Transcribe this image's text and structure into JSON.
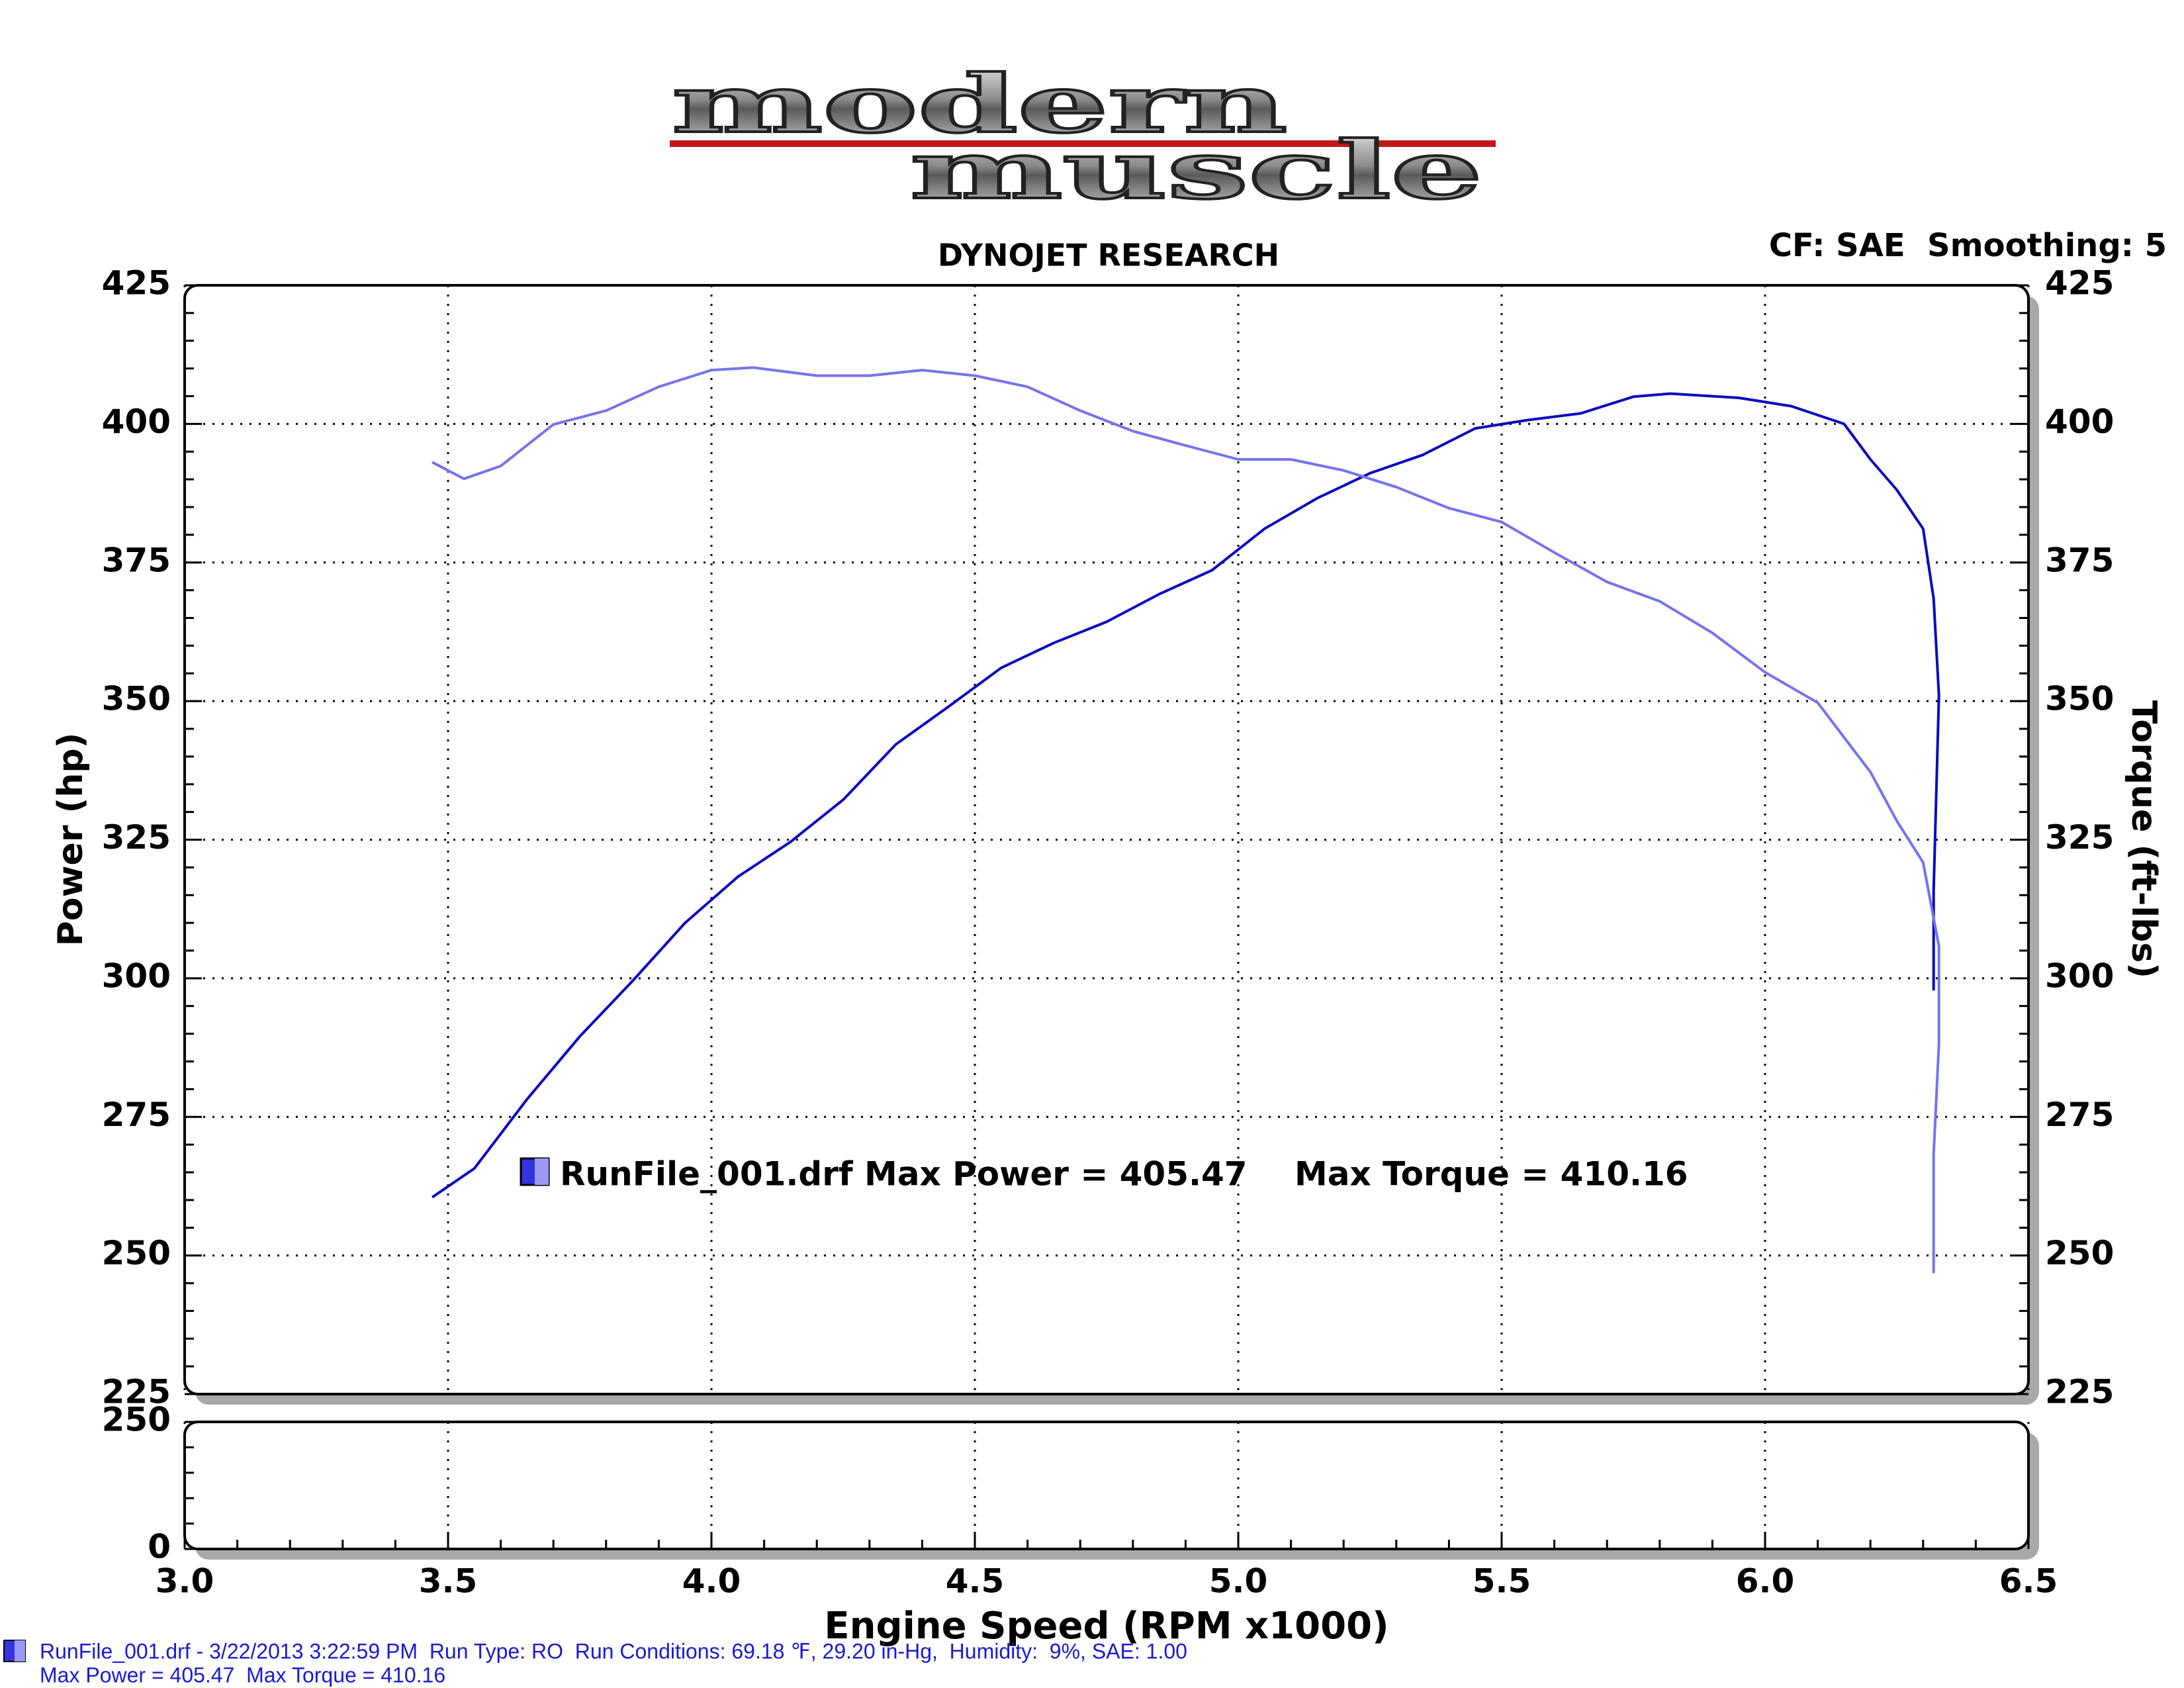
{
  "chart_data": {
    "type": "line",
    "logo_top": "modern",
    "logo_bottom": "muscle",
    "title": "DYNOJET RESEARCH",
    "subtitle": "CF: SAE  Smoothing: 5",
    "x_label": "Engine Speed (RPM x1000)",
    "y_label": "Power (hp)",
    "y2_label": "Torque (ft-lbs)",
    "xlim": [
      3.0,
      6.5
    ],
    "xticks": [
      {
        "value": 3,
        "label": "3.0"
      },
      3.5,
      {
        "value": 4,
        "label": "4.0"
      },
      4.5,
      {
        "value": 5,
        "label": "5.0"
      },
      5.5,
      {
        "value": 6,
        "label": "6.0"
      },
      6.5
    ],
    "ylim": [
      225,
      425
    ],
    "yticks": [
      225,
      250,
      275,
      300,
      325,
      350,
      375,
      400,
      425
    ],
    "y2lim": [
      225,
      425
    ],
    "y2ticks": [
      225,
      250,
      275,
      300,
      325,
      350,
      375,
      400,
      425
    ],
    "lower_ylim": [
      0,
      250
    ],
    "lower_yticks": [
      0,
      250
    ],
    "minor_ticks": 4,
    "grid": true,
    "series": [
      {
        "color": "#0a0ac0",
        "x": [
          3.47,
          3.55,
          3.65,
          3.75,
          3.85,
          3.95,
          4.05,
          4.15,
          4.25,
          4.35,
          4.45,
          4.55,
          4.65,
          4.75,
          4.85,
          4.95,
          5.05,
          5.15,
          5.25,
          5.35,
          5.45,
          5.55,
          5.65,
          5.75,
          5.82,
          5.95,
          6.05,
          6.15,
          6.2,
          6.25,
          6.3,
          6.32,
          6.33,
          6.32,
          6.32
        ],
        "values": [
          260.5,
          265.7,
          278.2,
          289.5,
          299.5,
          310,
          318.3,
          324.6,
          332.2,
          342.2,
          349,
          356,
          360.5,
          364.3,
          369.3,
          373.6,
          381.1,
          386.6,
          391.1,
          394.4,
          399.2,
          400.7,
          401.9,
          404.9,
          405.47,
          404.7,
          403.2,
          400,
          393.6,
          388.1,
          381.1,
          368.5,
          351,
          315.8,
          297.8
        ]
      },
      {
        "color": "#7474ee",
        "axis": "y2",
        "x": [
          3.47,
          3.53,
          3.6,
          3.7,
          3.8,
          3.9,
          4.0,
          4.08,
          4.2,
          4.3,
          4.4,
          4.5,
          4.6,
          4.7,
          4.8,
          4.9,
          5.0,
          5.1,
          5.2,
          5.3,
          5.4,
          5.5,
          5.6,
          5.7,
          5.8,
          5.9,
          6.0,
          6.1,
          6.2,
          6.25,
          6.3,
          6.33,
          6.33,
          6.32,
          6.32
        ],
        "values": [
          393.1,
          390.1,
          392.4,
          399.9,
          402.4,
          406.7,
          409.7,
          410.16,
          408.7,
          408.7,
          409.7,
          408.7,
          406.7,
          402.4,
          398.7,
          396.1,
          393.6,
          393.6,
          391.6,
          388.6,
          384.8,
          382.3,
          376.8,
          371.5,
          368,
          362.3,
          355.2,
          349.7,
          337.2,
          328.4,
          320.9,
          305.8,
          288.2,
          268.2,
          246.8
        ]
      }
    ],
    "legend": {
      "power": "RunFile_001.drf Max Power = 405.47",
      "torque": "Max Torque = 410.16"
    },
    "footer": [
      "RunFile_001.drf - 3/22/2013 3:22:59 PM  Run Type: RO  Run Conditions: 69.18 ℉, 29.20 in-Hg,  Humidity:  9%, SAE: 1.00",
      "Max Power = 405.47  Max Torque = 410.16"
    ]
  }
}
